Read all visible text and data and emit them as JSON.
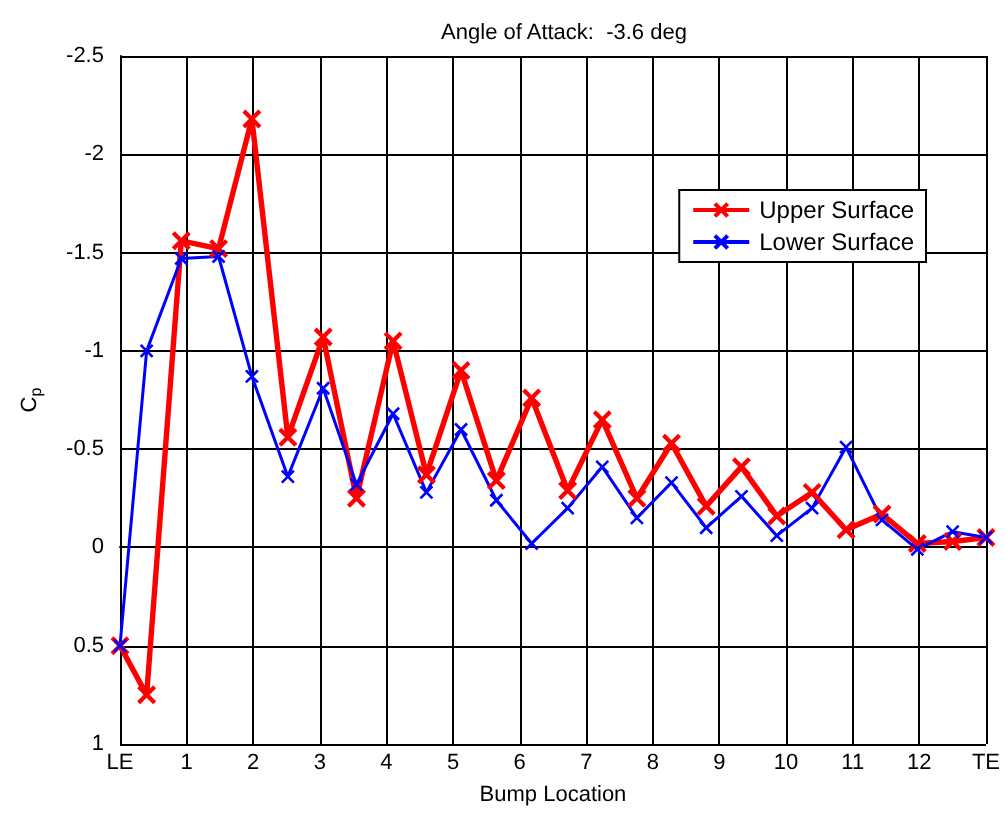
{
  "chart_data": {
    "type": "line",
    "title": "Angle of Attack:  -3.6 deg",
    "xlabel": "Bump Location",
    "ylabel": "C$_{p}$",
    "x": [
      0,
      0.4,
      0.92,
      1.48,
      1.98,
      2.52,
      3.05,
      3.55,
      4.1,
      4.6,
      5.12,
      5.65,
      6.18,
      6.72,
      7.24,
      7.76,
      8.28,
      8.8,
      9.33,
      9.86,
      10.39,
      10.9,
      11.44,
      11.97,
      12.5,
      13
    ],
    "series": [
      {
        "name": "Upper Surface",
        "color": "#ff0000",
        "values": [
          0.5,
          0.75,
          -1.56,
          -1.52,
          -2.18,
          -0.56,
          -1.07,
          -0.25,
          -1.05,
          -0.37,
          -0.9,
          -0.34,
          -0.76,
          -0.29,
          -0.65,
          -0.25,
          -0.53,
          -0.21,
          -0.41,
          -0.16,
          -0.28,
          -0.09,
          -0.17,
          -0.02,
          -0.03,
          -0.05
        ]
      },
      {
        "name": "Lower Surface",
        "color": "#0000ff",
        "values": [
          0.5,
          -1.0,
          -1.47,
          -1.48,
          -0.87,
          -0.36,
          -0.81,
          -0.32,
          -0.68,
          -0.28,
          -0.6,
          -0.24,
          -0.02,
          -0.2,
          -0.41,
          -0.15,
          -0.33,
          -0.1,
          -0.26,
          -0.06,
          -0.2,
          -0.51,
          -0.14,
          0.01,
          -0.08,
          -0.05
        ]
      }
    ],
    "xlim": [
      0,
      13
    ],
    "xticks": [
      {
        "value": 0,
        "label": "LE"
      },
      1,
      2,
      3,
      4,
      5,
      6,
      7,
      8,
      9,
      10,
      11,
      12,
      {
        "value": 13,
        "label": "TE"
      }
    ],
    "ylim": [
      1,
      -2.5
    ],
    "yticks": [
      -2.5,
      -2,
      -1.5,
      -1,
      -0.5,
      0,
      0.5,
      1
    ],
    "grid": true,
    "legend": "top right",
    "marker": "cross",
    "line_style": "solid"
  }
}
